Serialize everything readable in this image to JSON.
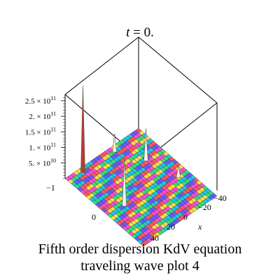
{
  "chart_data": {
    "type": "surface3d",
    "title": "t = 0.",
    "title_var": "t",
    "title_rest": " = 0.",
    "xlabel": "x",
    "x_ticks": [
      "−40",
      "−20",
      "0",
      "20",
      "40"
    ],
    "y_ticks": [
      "−1",
      "0"
    ],
    "z_ticks": [
      {
        "mant": "5. × 10",
        "exp": "10",
        "value": 50000000000.0
      },
      {
        "mant": "1. × 10",
        "exp": "11",
        "value": 100000000000.0
      },
      {
        "mant": "1.5 × 10",
        "exp": "11",
        "value": 150000000000.0
      },
      {
        "mant": "2. × 10",
        "exp": "11",
        "value": 200000000000.0
      },
      {
        "mant": "2.5 × 10",
        "exp": "11",
        "value": 250000000000.0
      }
    ],
    "zlim": [
      0,
      270000000000.0
    ],
    "spikes": [
      {
        "name": "spike-left-tall",
        "value": 275000000000.0
      },
      {
        "name": "spike-back-mid",
        "value": 55000000000.0
      },
      {
        "name": "spike-center",
        "value": 150000000000.0
      },
      {
        "name": "spike-right",
        "value": 35000000000.0
      },
      {
        "name": "spike-center-back",
        "value": 100000000000.0
      }
    ],
    "colormap": [
      "#ff4fd8",
      "#ffe04a",
      "#39e07a",
      "#1ec8e8",
      "#6a5cff",
      "#ff5a5a"
    ]
  },
  "caption": {
    "line1": "Fifth order dispersion KdV  equation",
    "line2": "traveling wave plot 4"
  }
}
